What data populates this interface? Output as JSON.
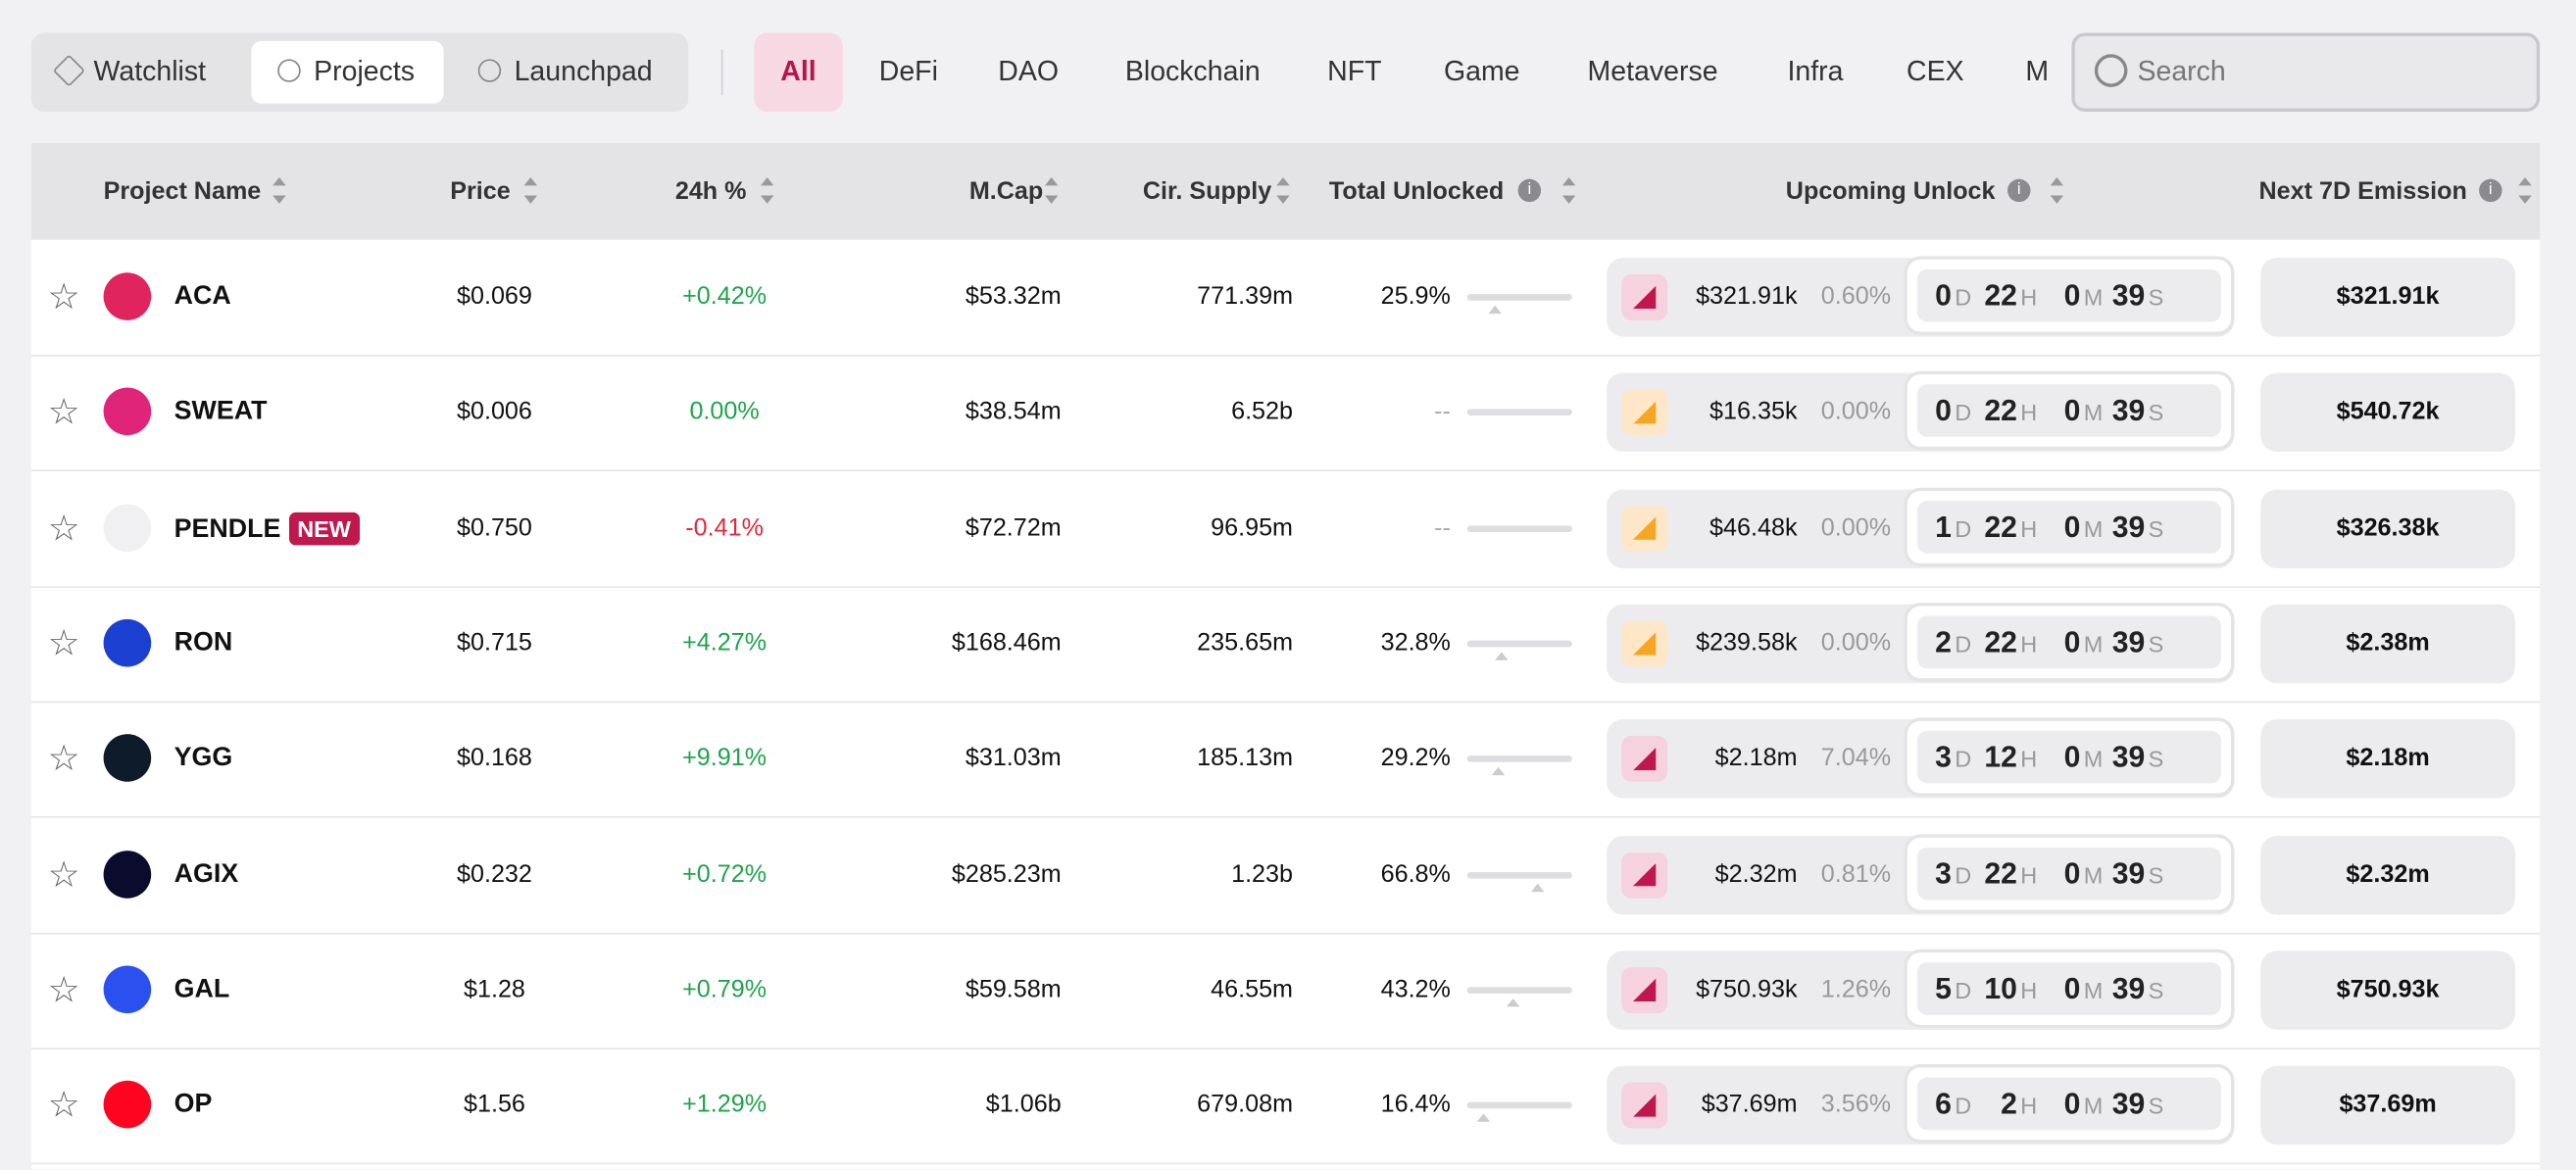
{
  "tabs": [
    "Watchlist",
    "Projects",
    "Launchpad"
  ],
  "categories": [
    "All",
    "DeFi",
    "DAO",
    "Blockchain",
    "NFT",
    "Game",
    "Metaverse",
    "Infra",
    "CEX",
    "M"
  ],
  "search_placeholder": "Search",
  "table": {
    "headers": [
      "Project Name",
      "Price",
      "24h %",
      "M.Cap",
      "Cir. Supply",
      "Total Unlocked",
      "Upcoming Unlock",
      "Next 7D Emission"
    ],
    "countdown_units": [
      "D",
      "H",
      "M",
      "S"
    ],
    "rows": [
      {
        "name": "ACA",
        "price": "$0.069",
        "change": "+0.42%",
        "mcap": "$53.32m",
        "supply": "771.39m",
        "unlocked": "25.9%",
        "upcoming_amount": "$321.91k",
        "upcoming_pct": "0.60%",
        "countdown": [
          0,
          22,
          0,
          39
        ],
        "emission": "$321.91k"
      },
      {
        "name": "SWEAT",
        "price": "$0.006",
        "change": "0.00%",
        "mcap": "$38.54m",
        "supply": "6.52b",
        "unlocked": "--",
        "upcoming_amount": "$16.35k",
        "upcoming_pct": "0.00%",
        "countdown": [
          0,
          22,
          0,
          39
        ],
        "emission": "$540.72k"
      },
      {
        "name": "PENDLE",
        "badge": "NEW",
        "price": "$0.750",
        "change": "-0.41%",
        "mcap": "$72.72m",
        "supply": "96.95m",
        "unlocked": "--",
        "upcoming_amount": "$46.48k",
        "upcoming_pct": "0.00%",
        "countdown": [
          1,
          22,
          0,
          39
        ],
        "emission": "$326.38k"
      },
      {
        "name": "RON",
        "price": "$0.715",
        "change": "+4.27%",
        "mcap": "$168.46m",
        "supply": "235.65m",
        "unlocked": "32.8%",
        "upcoming_amount": "$239.58k",
        "upcoming_pct": "0.00%",
        "countdown": [
          2,
          22,
          0,
          39
        ],
        "emission": "$2.38m"
      },
      {
        "name": "YGG",
        "price": "$0.168",
        "change": "+9.91%",
        "mcap": "$31.03m",
        "supply": "185.13m",
        "unlocked": "29.2%",
        "upcoming_amount": "$2.18m",
        "upcoming_pct": "7.04%",
        "countdown": [
          3,
          12,
          0,
          39
        ],
        "emission": "$2.18m"
      },
      {
        "name": "AGIX",
        "price": "$0.232",
        "change": "+0.72%",
        "mcap": "$285.23m",
        "supply": "1.23b",
        "unlocked": "66.8%",
        "upcoming_amount": "$2.32m",
        "upcoming_pct": "0.81%",
        "countdown": [
          3,
          22,
          0,
          39
        ],
        "emission": "$2.32m"
      },
      {
        "name": "GAL",
        "price": "$1.28",
        "change": "+0.79%",
        "mcap": "$59.58m",
        "supply": "46.55m",
        "unlocked": "43.2%",
        "upcoming_amount": "$750.93k",
        "upcoming_pct": "1.26%",
        "countdown": [
          5,
          10,
          0,
          39
        ],
        "emission": "$750.93k"
      },
      {
        "name": "OP",
        "price": "$1.56",
        "change": "+1.29%",
        "mcap": "$1.06b",
        "supply": "679.08m",
        "unlocked": "16.4%",
        "upcoming_amount": "$37.69m",
        "upcoming_pct": "3.56%",
        "countdown": [
          6,
          2,
          0,
          39
        ],
        "emission": "$37.69m"
      }
    ]
  }
}
